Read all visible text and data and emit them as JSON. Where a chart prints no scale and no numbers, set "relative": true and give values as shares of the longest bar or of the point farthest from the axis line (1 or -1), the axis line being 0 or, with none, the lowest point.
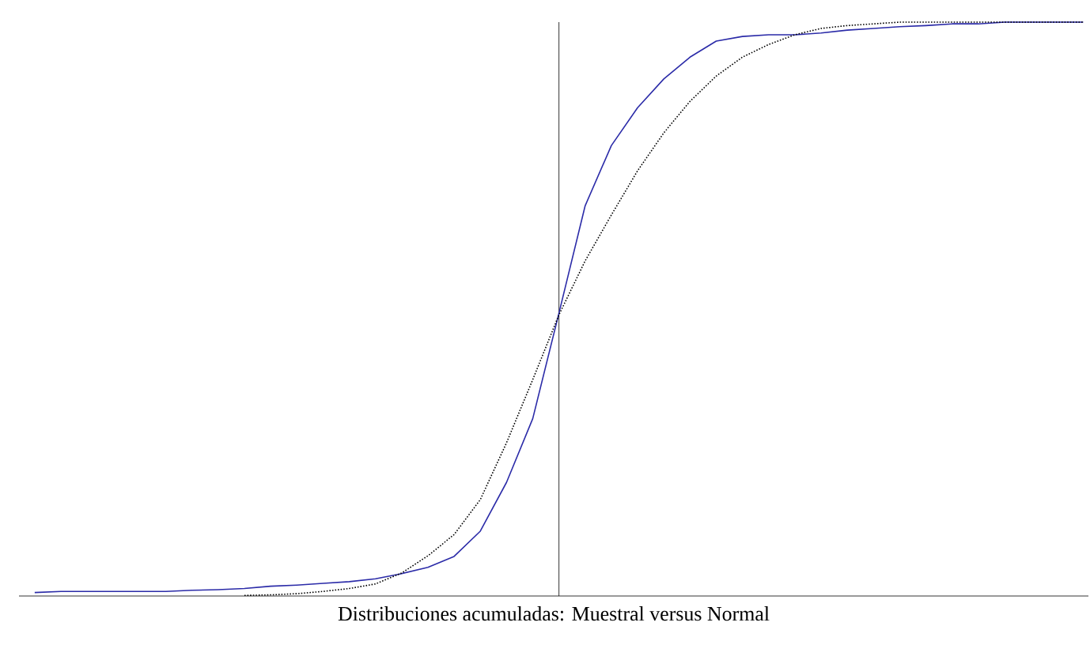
{
  "chart_data": {
    "type": "line",
    "relative": true,
    "xlabel": "Distribuciones acumuladas: Muestral versus Normal",
    "categories": [
      null,
      null,
      null,
      null,
      null,
      null,
      null,
      null,
      null,
      null,
      null,
      null,
      null,
      null,
      null,
      null,
      null,
      null,
      null,
      null,
      null,
      null,
      null,
      null,
      null,
      null,
      null,
      null,
      null,
      null,
      null,
      null,
      null,
      null,
      null,
      null,
      null,
      null,
      null,
      null,
      null
    ],
    "series": [
      {
        "color": "#2b2ba8",
        "line_style": "solid",
        "values": [
          0.006,
          0.008,
          0.008,
          0.008,
          0.008,
          0.008,
          0.01,
          0.011,
          0.013,
          0.017,
          0.019,
          0.022,
          0.025,
          0.03,
          0.039,
          0.05,
          0.069,
          0.113,
          0.198,
          0.309,
          0.493,
          0.68,
          0.785,
          0.851,
          0.901,
          0.939,
          0.967,
          0.975,
          0.978,
          0.978,
          0.981,
          0.986,
          0.989,
          0.992,
          0.994,
          0.997,
          0.997,
          1,
          1,
          1,
          1
        ]
      },
      {
        "color": "#000000",
        "line_style": "dotted",
        "values": [
          null,
          null,
          null,
          null,
          null,
          null,
          null,
          null,
          0.001,
          0.002,
          0.004,
          0.008,
          0.013,
          0.021,
          0.04,
          0.07,
          0.107,
          0.168,
          0.267,
          0.377,
          0.49,
          0.584,
          0.664,
          0.741,
          0.807,
          0.862,
          0.906,
          0.939,
          0.961,
          0.978,
          0.989,
          0.994,
          0.997,
          1,
          1,
          1,
          1,
          1,
          1,
          1,
          1
        ]
      }
    ],
    "marker": "none"
  }
}
